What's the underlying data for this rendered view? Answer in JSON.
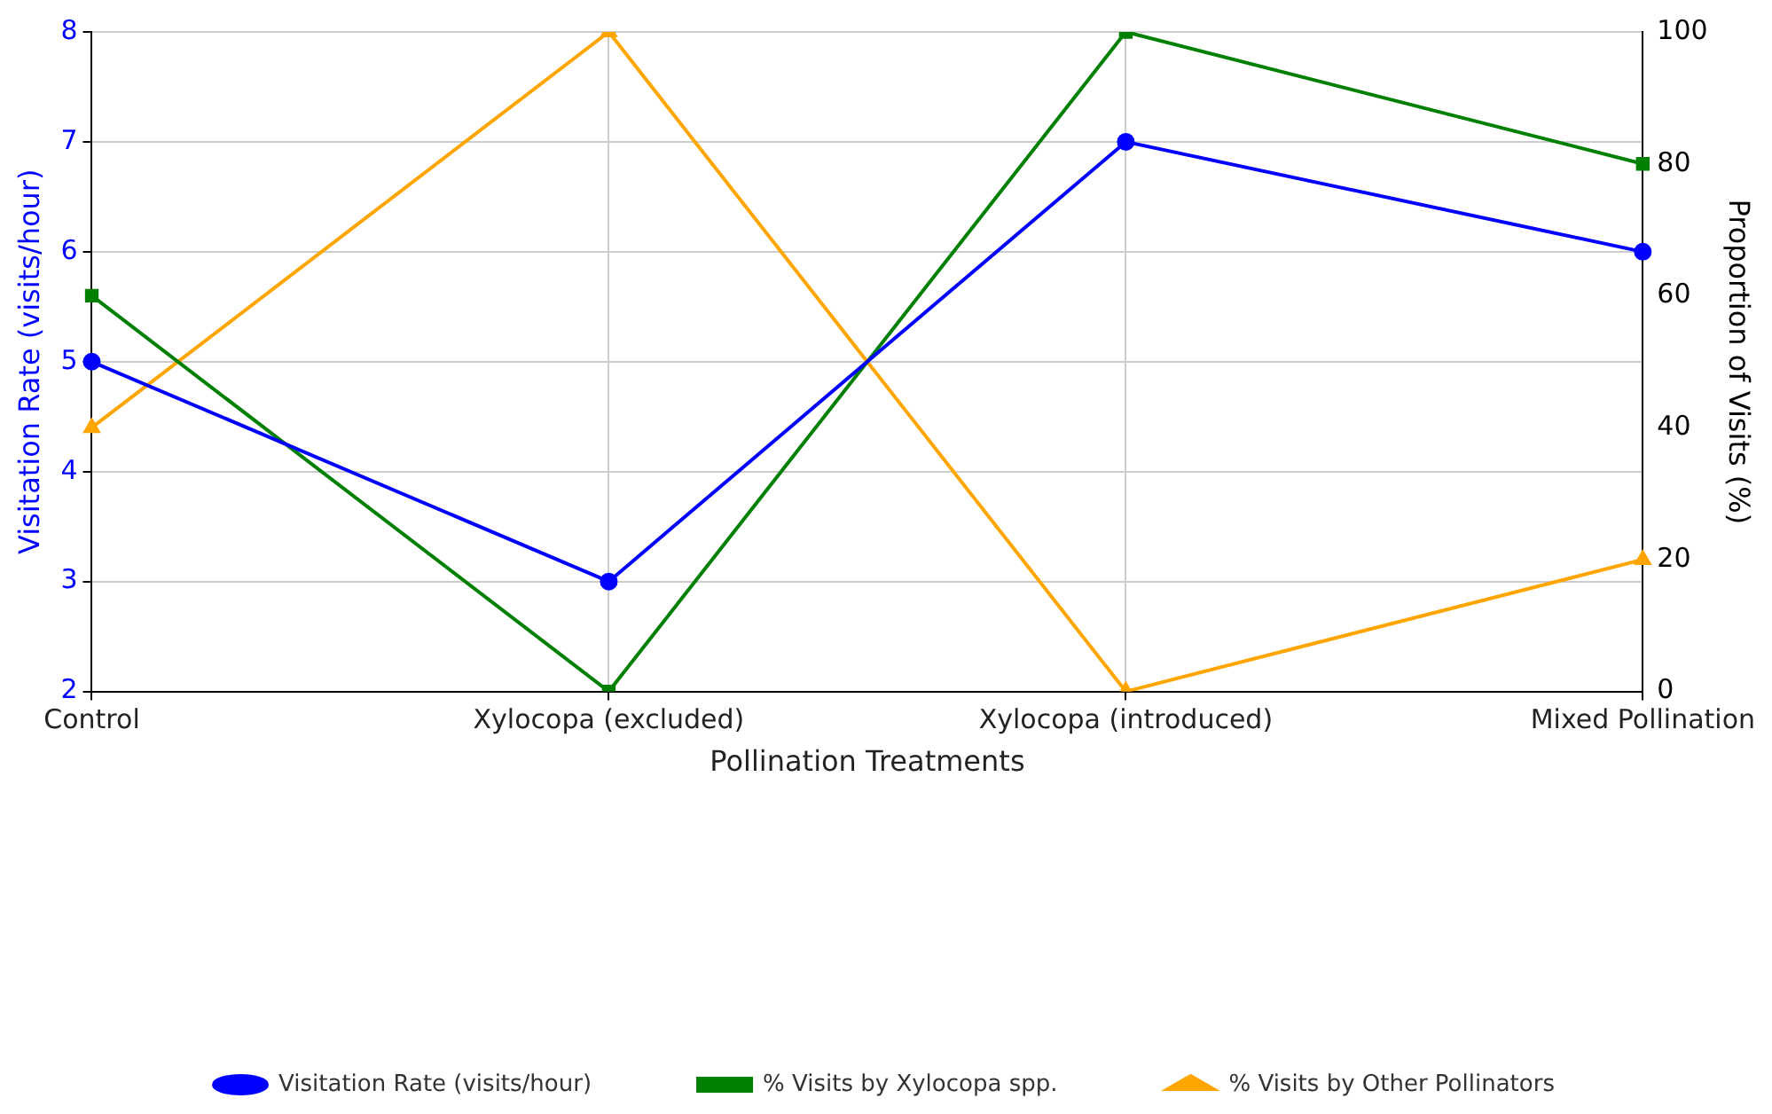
{
  "chart_data": {
    "type": "line",
    "xlabel": "Pollination Treatments",
    "ylabel": "Visitation Rate (visits/hour)",
    "y2label": "Proportion of Visits (%)",
    "categories": [
      "Control",
      "Xylocopa (excluded)",
      "Xylocopa (introduced)",
      "Mixed Pollination"
    ],
    "series": [
      {
        "name": "Visitation Rate (visits/hour)",
        "color": "#0000ff",
        "marker": "circle",
        "values": [
          5,
          3,
          7,
          6
        ]
      },
      {
        "name": "% Visits by Xylocopa spp.",
        "color": "#008000",
        "marker": "square",
        "axis": "y2",
        "values": [
          60,
          0,
          100,
          80
        ]
      },
      {
        "name": "% Visits by Other Pollinators",
        "color": "#ffa500",
        "marker": "triangle",
        "axis": "y2",
        "values": [
          40,
          100,
          0,
          20
        ]
      }
    ],
    "ylim": [
      2,
      8
    ],
    "yticks": [
      2,
      3,
      4,
      5,
      6,
      7,
      8
    ],
    "y2lim": [
      0,
      100
    ],
    "y2ticks": [
      0,
      20,
      40,
      60,
      80,
      100
    ],
    "grid": true,
    "legend": "bottom",
    "line_style": "solid"
  }
}
